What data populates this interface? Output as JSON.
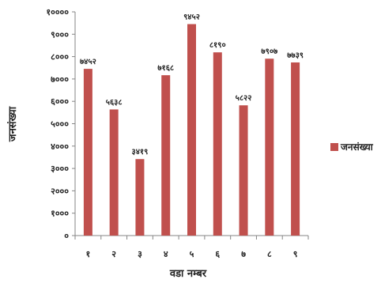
{
  "chart_data": {
    "type": "bar",
    "title": "",
    "xlabel": "वडा नम्बर",
    "ylabel": "जनसंख्या",
    "ylim": [
      0,
      10000
    ],
    "y_ticks": [
      0,
      1000,
      2000,
      3000,
      4000,
      5000,
      6000,
      7000,
      8000,
      9000,
      10000
    ],
    "y_tick_labels": [
      "०",
      "१०००",
      "२०००",
      "३०००",
      "४०००",
      "५०००",
      "६०००",
      "७०००",
      "८०००",
      "९०००",
      "१००००"
    ],
    "categories": [
      "१",
      "२",
      "३",
      "४",
      "५",
      "६",
      "७",
      "८",
      "९"
    ],
    "series": [
      {
        "name": "जनसंख्या",
        "values": [
          7452,
          5638,
          3419,
          7168,
          9452,
          8190,
          5822,
          7907,
          7739
        ],
        "data_labels": [
          "७४५२",
          "५६३८",
          "३४१९",
          "७१६८",
          "९४५२",
          "८१९०",
          "५८२२",
          "७९०७",
          "७७३९"
        ]
      }
    ],
    "grid": false,
    "legend_position": "right",
    "colors": {
      "bar": "#c0504d",
      "axis": "#868686",
      "text": "#222222"
    }
  }
}
